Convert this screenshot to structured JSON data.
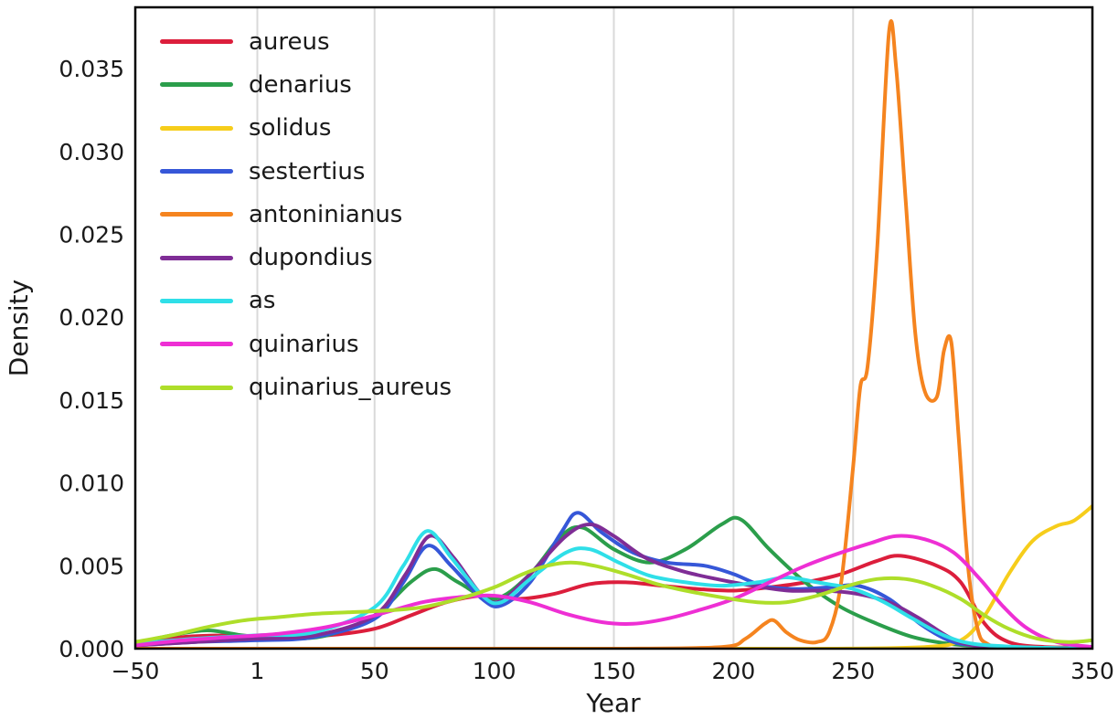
{
  "figure": {
    "background": "#ffffff",
    "border_color": "#000000",
    "grid_color": "#d9d9d9",
    "text_color": "#1a1a1a"
  },
  "chart_data": {
    "type": "line",
    "subtype": "kde-density",
    "title": "",
    "xlabel": "Year",
    "ylabel": "Density",
    "xlim": [
      -50,
      350
    ],
    "ylim": [
      0,
      0.0387
    ],
    "grid": "vertical-only",
    "legend_position": "upper-left-inside",
    "xticks": [
      {
        "value": -50,
        "label": "−50"
      },
      {
        "value": 1,
        "label": "1"
      },
      {
        "value": 50,
        "label": "50"
      },
      {
        "value": 100,
        "label": "100"
      },
      {
        "value": 150,
        "label": "150"
      },
      {
        "value": 200,
        "label": "200"
      },
      {
        "value": 250,
        "label": "250"
      },
      {
        "value": 300,
        "label": "300"
      },
      {
        "value": 350,
        "label": "350"
      }
    ],
    "yticks": [
      {
        "value": 0.0,
        "label": "0.000"
      },
      {
        "value": 0.005,
        "label": "0.005"
      },
      {
        "value": 0.01,
        "label": "0.010"
      },
      {
        "value": 0.015,
        "label": "0.015"
      },
      {
        "value": 0.02,
        "label": "0.020"
      },
      {
        "value": 0.025,
        "label": "0.025"
      },
      {
        "value": 0.03,
        "label": "0.030"
      },
      {
        "value": 0.035,
        "label": "0.035"
      }
    ],
    "series": [
      {
        "name": "aureus",
        "color": "#dc1e3c",
        "points": [
          [
            -50,
            0.0002
          ],
          [
            -30,
            0.0007
          ],
          [
            -10,
            0.0008
          ],
          [
            10,
            0.0007
          ],
          [
            30,
            0.0008
          ],
          [
            50,
            0.0012
          ],
          [
            65,
            0.002
          ],
          [
            80,
            0.0028
          ],
          [
            95,
            0.0032
          ],
          [
            110,
            0.003
          ],
          [
            125,
            0.0033
          ],
          [
            140,
            0.0039
          ],
          [
            155,
            0.004
          ],
          [
            170,
            0.0038
          ],
          [
            185,
            0.0036
          ],
          [
            200,
            0.0035
          ],
          [
            215,
            0.0037
          ],
          [
            230,
            0.004
          ],
          [
            245,
            0.0045
          ],
          [
            260,
            0.0053
          ],
          [
            270,
            0.0056
          ],
          [
            285,
            0.005
          ],
          [
            295,
            0.004
          ],
          [
            305,
            0.0015
          ],
          [
            315,
            0.0004
          ],
          [
            330,
            0.0001
          ],
          [
            350,
            0.0001
          ]
        ]
      },
      {
        "name": "denarius",
        "color": "#2b9e4b",
        "points": [
          [
            -50,
            0.0003
          ],
          [
            -35,
            0.0008
          ],
          [
            -20,
            0.0011
          ],
          [
            -5,
            0.0008
          ],
          [
            10,
            0.0006
          ],
          [
            30,
            0.0008
          ],
          [
            50,
            0.002
          ],
          [
            65,
            0.004
          ],
          [
            75,
            0.0048
          ],
          [
            85,
            0.004
          ],
          [
            100,
            0.003
          ],
          [
            115,
            0.0045
          ],
          [
            128,
            0.0068
          ],
          [
            137,
            0.0073
          ],
          [
            150,
            0.006
          ],
          [
            165,
            0.0052
          ],
          [
            180,
            0.006
          ],
          [
            195,
            0.0075
          ],
          [
            203,
            0.0078
          ],
          [
            215,
            0.006
          ],
          [
            230,
            0.004
          ],
          [
            245,
            0.0025
          ],
          [
            260,
            0.0015
          ],
          [
            275,
            0.0007
          ],
          [
            290,
            0.0003
          ],
          [
            310,
            0.0001
          ],
          [
            350,
            0
          ]
        ]
      },
      {
        "name": "solidus",
        "color": "#f6cd1b",
        "points": [
          [
            -50,
            0
          ],
          [
            0,
            0
          ],
          [
            100,
            0
          ],
          [
            200,
            0
          ],
          [
            240,
            0
          ],
          [
            280,
            0.0001
          ],
          [
            295,
            0.0005
          ],
          [
            305,
            0.002
          ],
          [
            315,
            0.0045
          ],
          [
            325,
            0.0065
          ],
          [
            335,
            0.0074
          ],
          [
            342,
            0.0077
          ],
          [
            350,
            0.0086
          ]
        ]
      },
      {
        "name": "sestertius",
        "color": "#3657d8",
        "points": [
          [
            -50,
            0.0002
          ],
          [
            -25,
            0.0004
          ],
          [
            0,
            0.0005
          ],
          [
            25,
            0.0007
          ],
          [
            50,
            0.0018
          ],
          [
            62,
            0.004
          ],
          [
            72,
            0.0062
          ],
          [
            82,
            0.005
          ],
          [
            95,
            0.003
          ],
          [
            103,
            0.0026
          ],
          [
            115,
            0.004
          ],
          [
            128,
            0.007
          ],
          [
            135,
            0.0082
          ],
          [
            145,
            0.007
          ],
          [
            158,
            0.0058
          ],
          [
            172,
            0.0052
          ],
          [
            188,
            0.005
          ],
          [
            200,
            0.0045
          ],
          [
            212,
            0.0038
          ],
          [
            225,
            0.0036
          ],
          [
            240,
            0.0037
          ],
          [
            252,
            0.0038
          ],
          [
            265,
            0.003
          ],
          [
            278,
            0.0015
          ],
          [
            290,
            0.0005
          ],
          [
            300,
            0.0002
          ],
          [
            320,
            0
          ],
          [
            350,
            0
          ]
        ]
      },
      {
        "name": "antoninianus",
        "color": "#f5841f",
        "points": [
          [
            -50,
            0
          ],
          [
            0,
            0
          ],
          [
            100,
            0
          ],
          [
            150,
            0
          ],
          [
            195,
            0.0001
          ],
          [
            205,
            0.0006
          ],
          [
            213,
            0.0015
          ],
          [
            217,
            0.0017
          ],
          [
            222,
            0.001
          ],
          [
            228,
            0.0005
          ],
          [
            235,
            0.0004
          ],
          [
            240,
            0.001
          ],
          [
            245,
            0.004
          ],
          [
            250,
            0.011
          ],
          [
            253,
            0.0158
          ],
          [
            256,
            0.017
          ],
          [
            260,
            0.024
          ],
          [
            265,
            0.0372
          ],
          [
            268,
            0.035
          ],
          [
            272,
            0.027
          ],
          [
            276,
            0.019
          ],
          [
            280,
            0.0155
          ],
          [
            285,
            0.0152
          ],
          [
            288,
            0.018
          ],
          [
            291,
            0.0185
          ],
          [
            294,
            0.013
          ],
          [
            298,
            0.005
          ],
          [
            302,
            0.0012
          ],
          [
            306,
            0.0003
          ],
          [
            315,
            0.0001
          ],
          [
            350,
            0
          ]
        ]
      },
      {
        "name": "dupondius",
        "color": "#7f2d96",
        "points": [
          [
            -50,
            0.0002
          ],
          [
            -25,
            0.0004
          ],
          [
            0,
            0.0006
          ],
          [
            25,
            0.0008
          ],
          [
            50,
            0.002
          ],
          [
            63,
            0.0045
          ],
          [
            73,
            0.0068
          ],
          [
            83,
            0.0055
          ],
          [
            95,
            0.0032
          ],
          [
            103,
            0.0029
          ],
          [
            115,
            0.0045
          ],
          [
            130,
            0.0068
          ],
          [
            140,
            0.0075
          ],
          [
            150,
            0.0068
          ],
          [
            163,
            0.0055
          ],
          [
            178,
            0.0047
          ],
          [
            193,
            0.0042
          ],
          [
            208,
            0.0038
          ],
          [
            223,
            0.0035
          ],
          [
            238,
            0.0035
          ],
          [
            252,
            0.0033
          ],
          [
            265,
            0.0028
          ],
          [
            278,
            0.0018
          ],
          [
            290,
            0.0007
          ],
          [
            300,
            0.0002
          ],
          [
            320,
            0
          ],
          [
            350,
            0
          ]
        ]
      },
      {
        "name": "as",
        "color": "#2fdfe8",
        "points": [
          [
            -50,
            0.0003
          ],
          [
            -25,
            0.0006
          ],
          [
            0,
            0.0008
          ],
          [
            25,
            0.001
          ],
          [
            50,
            0.0025
          ],
          [
            62,
            0.005
          ],
          [
            72,
            0.0071
          ],
          [
            82,
            0.0055
          ],
          [
            95,
            0.0032
          ],
          [
            103,
            0.0028
          ],
          [
            115,
            0.0042
          ],
          [
            130,
            0.0058
          ],
          [
            140,
            0.006
          ],
          [
            152,
            0.0052
          ],
          [
            165,
            0.0044
          ],
          [
            180,
            0.004
          ],
          [
            195,
            0.0038
          ],
          [
            210,
            0.004
          ],
          [
            222,
            0.0043
          ],
          [
            235,
            0.004
          ],
          [
            250,
            0.0036
          ],
          [
            263,
            0.0028
          ],
          [
            275,
            0.0018
          ],
          [
            288,
            0.0008
          ],
          [
            300,
            0.0003
          ],
          [
            320,
            0.0001
          ],
          [
            350,
            0
          ]
        ]
      },
      {
        "name": "quinarius",
        "color": "#ee2fd4",
        "points": [
          [
            -50,
            0.0002
          ],
          [
            -30,
            0.0005
          ],
          [
            -10,
            0.0007
          ],
          [
            10,
            0.0009
          ],
          [
            30,
            0.0013
          ],
          [
            50,
            0.002
          ],
          [
            70,
            0.0028
          ],
          [
            85,
            0.0031
          ],
          [
            100,
            0.0032
          ],
          [
            115,
            0.0028
          ],
          [
            130,
            0.0021
          ],
          [
            145,
            0.0016
          ],
          [
            158,
            0.0015
          ],
          [
            172,
            0.0018
          ],
          [
            185,
            0.0023
          ],
          [
            200,
            0.003
          ],
          [
            215,
            0.004
          ],
          [
            230,
            0.005
          ],
          [
            245,
            0.0058
          ],
          [
            258,
            0.0064
          ],
          [
            268,
            0.0068
          ],
          [
            280,
            0.0066
          ],
          [
            292,
            0.0058
          ],
          [
            303,
            0.0042
          ],
          [
            313,
            0.0025
          ],
          [
            323,
            0.0012
          ],
          [
            335,
            0.0004
          ],
          [
            350,
            0.0001
          ]
        ]
      },
      {
        "name": "quinarius_aureus",
        "color": "#aede2a",
        "points": [
          [
            -50,
            0.0004
          ],
          [
            -35,
            0.0008
          ],
          [
            -20,
            0.0013
          ],
          [
            -5,
            0.0017
          ],
          [
            10,
            0.0019
          ],
          [
            25,
            0.0021
          ],
          [
            40,
            0.0022
          ],
          [
            55,
            0.0023
          ],
          [
            70,
            0.0025
          ],
          [
            85,
            0.003
          ],
          [
            100,
            0.0037
          ],
          [
            112,
            0.0045
          ],
          [
            122,
            0.005
          ],
          [
            132,
            0.0052
          ],
          [
            142,
            0.005
          ],
          [
            155,
            0.0045
          ],
          [
            168,
            0.0039
          ],
          [
            180,
            0.0035
          ],
          [
            195,
            0.0031
          ],
          [
            210,
            0.0028
          ],
          [
            222,
            0.0028
          ],
          [
            235,
            0.0032
          ],
          [
            248,
            0.0038
          ],
          [
            260,
            0.0042
          ],
          [
            272,
            0.0042
          ],
          [
            283,
            0.0038
          ],
          [
            295,
            0.003
          ],
          [
            305,
            0.002
          ],
          [
            315,
            0.0012
          ],
          [
            327,
            0.0006
          ],
          [
            340,
            0.0004
          ],
          [
            350,
            0.0005
          ]
        ]
      }
    ]
  }
}
